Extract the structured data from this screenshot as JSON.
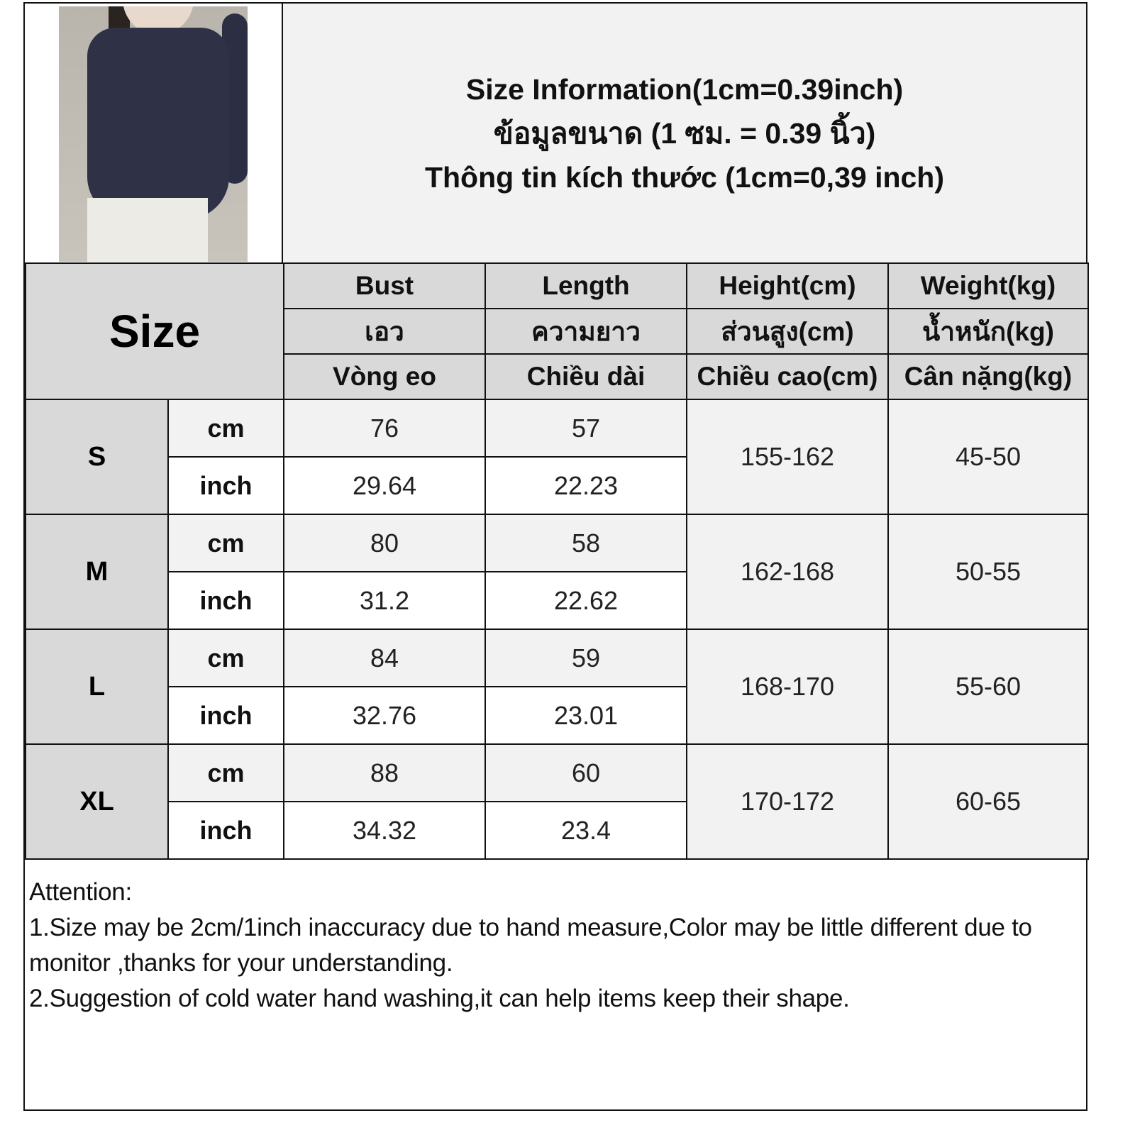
{
  "title_lines": [
    "Size Information(1cm=0.39inch)",
    "ข้อมูลขนาด (1 ซม. = 0.39 นิ้ว)",
    "Thông tin kích thước (1cm=0,39 inch)"
  ],
  "product_image": "navy-draped-long-sleeve-top-photo",
  "size_header": "Size",
  "columns": [
    {
      "en": "Bust",
      "th": "เอว",
      "vi": "Vòng eo"
    },
    {
      "en": "Length",
      "th": "ความยาว",
      "vi": "Chiều dài"
    },
    {
      "en": "Height(cm)",
      "th": "ส่วนสูง(cm)",
      "vi": "Chiều cao(cm)"
    },
    {
      "en": "Weight(kg)",
      "th": "น้ำหนัก(kg)",
      "vi": "Cân nặng(kg)"
    }
  ],
  "units": {
    "cm": "cm",
    "inch": "inch"
  },
  "rows": [
    {
      "size": "S",
      "bust_cm": "76",
      "length_cm": "57",
      "bust_inch": "29.64",
      "length_inch": "22.23",
      "height": "155-162",
      "weight": "45-50"
    },
    {
      "size": "M",
      "bust_cm": "80",
      "length_cm": "58",
      "bust_inch": "31.2",
      "length_inch": "22.62",
      "height": "162-168",
      "weight": "50-55"
    },
    {
      "size": "L",
      "bust_cm": "84",
      "length_cm": "59",
      "bust_inch": "32.76",
      "length_inch": "23.01",
      "height": "168-170",
      "weight": "55-60"
    },
    {
      "size": "XL",
      "bust_cm": "88",
      "length_cm": "60",
      "bust_inch": "34.32",
      "length_inch": "23.4",
      "height": "170-172",
      "weight": "60-65"
    }
  ],
  "notes": [
    "Attention:",
    "1.Size may be 2cm/1inch inaccuracy due to hand measure,Color may be little different due to monitor ,thanks for your understanding.",
    "2.Suggestion of cold water hand washing,it can help items keep their shape."
  ]
}
